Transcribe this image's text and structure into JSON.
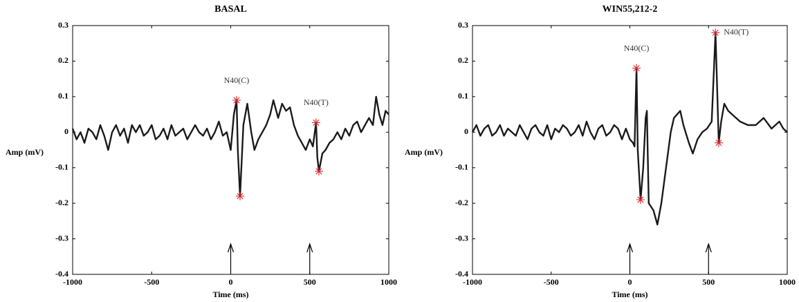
{
  "chart_data": [
    {
      "type": "line",
      "title": "BASAL",
      "xlabel": "Time (ms)",
      "ylabel": "Amp (mV)",
      "color": "#1a1a1a",
      "marker_color": "#d62728",
      "xlim": [
        -1000,
        1000
      ],
      "xticks": [
        -1000,
        -500,
        0,
        500,
        1000
      ],
      "ylim": [
        -0.4,
        0.3
      ],
      "yticks": [
        -0.4,
        -0.3,
        -0.2,
        -0.1,
        0,
        0.1,
        0.2,
        0.3
      ],
      "x": [
        -1000,
        -975,
        -950,
        -925,
        -900,
        -875,
        -850,
        -825,
        -800,
        -775,
        -750,
        -725,
        -700,
        -675,
        -650,
        -625,
        -600,
        -575,
        -550,
        -525,
        -500,
        -475,
        -450,
        -425,
        -400,
        -375,
        -350,
        -325,
        -300,
        -275,
        -250,
        -225,
        -200,
        -175,
        -150,
        -125,
        -100,
        -75,
        -50,
        -25,
        0,
        20,
        37,
        45,
        59,
        80,
        105,
        130,
        150,
        175,
        200,
        225,
        250,
        270,
        300,
        325,
        350,
        375,
        400,
        425,
        450,
        475,
        500,
        520,
        540,
        548,
        558,
        580,
        600,
        625,
        650,
        675,
        700,
        725,
        750,
        775,
        800,
        825,
        850,
        875,
        900,
        920,
        940,
        960,
        980,
        1000
      ],
      "y": [
        0.01,
        -0.02,
        0.0,
        -0.03,
        0.01,
        0.0,
        -0.02,
        0.02,
        -0.01,
        -0.05,
        0.0,
        0.02,
        -0.01,
        0.01,
        -0.03,
        0.02,
        0.0,
        0.02,
        -0.01,
        0.0,
        0.02,
        -0.02,
        -0.01,
        0.01,
        -0.02,
        0.02,
        -0.01,
        0.0,
        0.01,
        -0.02,
        0.0,
        0.02,
        0.0,
        -0.01,
        0.01,
        -0.02,
        0.0,
        0.03,
        -0.01,
        0.0,
        -0.05,
        0.05,
        0.09,
        -0.05,
        -0.18,
        0.02,
        0.08,
        0.0,
        -0.05,
        -0.02,
        0.0,
        0.02,
        0.05,
        0.09,
        0.04,
        0.08,
        0.06,
        0.07,
        0.02,
        -0.01,
        -0.03,
        -0.05,
        -0.02,
        -0.04,
        0.027,
        -0.07,
        -0.11,
        -0.06,
        -0.05,
        -0.03,
        -0.02,
        0.0,
        -0.02,
        0.01,
        -0.01,
        0.02,
        0.03,
        0.0,
        0.02,
        0.04,
        0.02,
        0.1,
        0.05,
        0.02,
        0.06,
        0.05
      ],
      "peaks": [
        {
          "label": "N40(C)",
          "x": [
            37,
            59
          ],
          "y": [
            0.09,
            -0.18
          ]
        },
        {
          "label": "N40(T)",
          "x": [
            540,
            558
          ],
          "y": [
            0.027,
            -0.11
          ]
        }
      ],
      "stimuli": [
        0,
        500
      ]
    },
    {
      "type": "line",
      "title": "WIN55,212-2",
      "xlabel": "Time (ms)",
      "ylabel": "Amp (mV)",
      "color": "#1a1a1a",
      "marker_color": "#d62728",
      "xlim": [
        -1000,
        1000
      ],
      "xticks": [
        -1000,
        -500,
        0,
        500,
        1000
      ],
      "ylim": [
        -0.4,
        0.3
      ],
      "yticks": [
        -0.4,
        -0.3,
        -0.2,
        -0.1,
        0,
        0.1,
        0.2,
        0.3
      ],
      "x": [
        -1000,
        -975,
        -950,
        -925,
        -900,
        -875,
        -850,
        -825,
        -800,
        -775,
        -750,
        -725,
        -700,
        -675,
        -650,
        -625,
        -600,
        -575,
        -550,
        -525,
        -500,
        -475,
        -450,
        -425,
        -400,
        -375,
        -350,
        -325,
        -300,
        -275,
        -250,
        -225,
        -200,
        -175,
        -150,
        -125,
        -100,
        -75,
        -50,
        -25,
        0,
        20,
        30,
        42,
        50,
        68,
        85,
        100,
        108,
        120,
        150,
        175,
        200,
        230,
        260,
        280,
        300,
        320,
        340,
        375,
        400,
        430,
        460,
        490,
        520,
        544,
        565,
        580,
        600,
        625,
        650,
        700,
        750,
        800,
        850,
        900,
        950,
        975,
        1000
      ],
      "y": [
        0.0,
        0.02,
        -0.01,
        0.01,
        0.02,
        -0.01,
        0.0,
        0.02,
        -0.01,
        0.01,
        0.0,
        -0.01,
        0.02,
        0.0,
        -0.02,
        0.01,
        0.02,
        0.0,
        -0.01,
        0.02,
        -0.02,
        0.01,
        0.0,
        0.02,
        0.01,
        -0.01,
        0.0,
        0.02,
        -0.01,
        0.03,
        0.0,
        -0.02,
        0.01,
        0.02,
        -0.01,
        0.0,
        0.02,
        0.01,
        -0.02,
        0.01,
        -0.02,
        -0.03,
        -0.04,
        0.18,
        -0.05,
        -0.19,
        -0.1,
        0.04,
        0.06,
        -0.2,
        -0.22,
        -0.26,
        -0.2,
        -0.1,
        0.0,
        0.04,
        0.05,
        0.06,
        0.02,
        -0.03,
        -0.06,
        -0.02,
        0.0,
        0.01,
        0.03,
        0.28,
        -0.03,
        0.03,
        0.08,
        0.06,
        0.05,
        0.03,
        0.02,
        0.02,
        0.04,
        0.01,
        0.03,
        0.01,
        0.0
      ],
      "peaks": [
        {
          "label": "N40(C)",
          "x": [
            42,
            68
          ],
          "y": [
            0.18,
            -0.19
          ]
        },
        {
          "label": "N40(T)",
          "x": [
            544,
            565
          ],
          "y": [
            0.28,
            -0.03
          ]
        }
      ],
      "stimuli": [
        0,
        500
      ]
    }
  ]
}
